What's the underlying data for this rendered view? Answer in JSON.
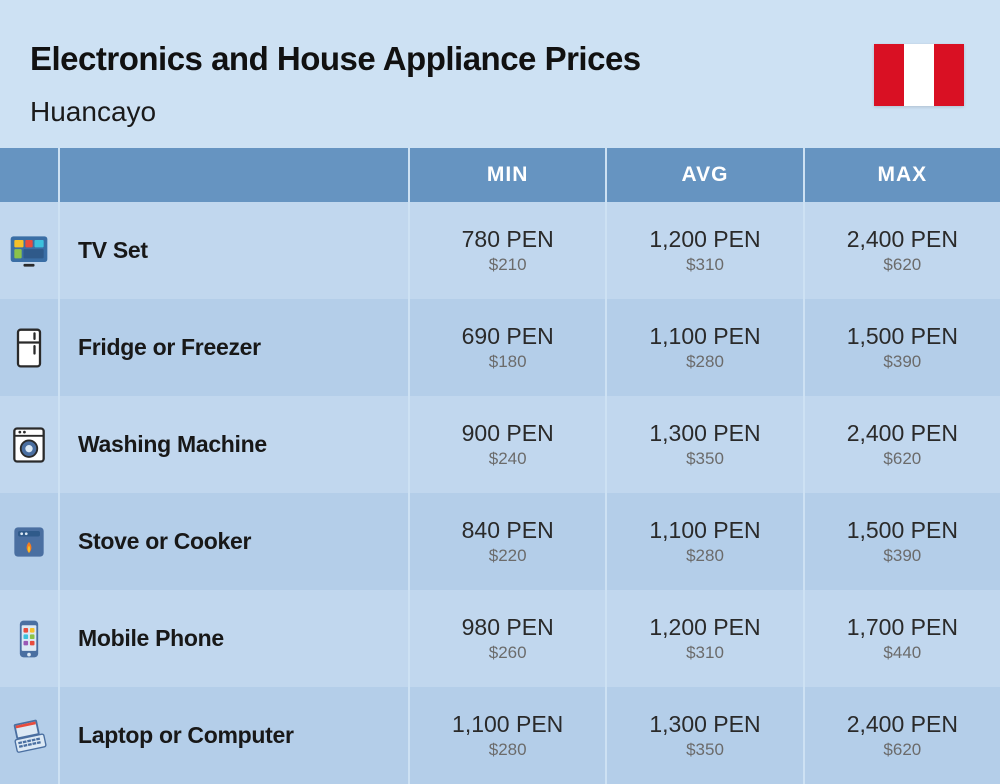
{
  "header": {
    "title": "Electronics and House Appliance Prices",
    "subtitle": "Huancayo",
    "flag_colors": {
      "red": "#d91023",
      "white": "#ffffff"
    }
  },
  "table": {
    "columns": [
      "MIN",
      "AVG",
      "MAX"
    ],
    "header_bg": "#6694c1",
    "header_fg": "#ffffff",
    "row_bg_a": "#c1d7ee",
    "row_bg_b": "#b4cee9",
    "page_bg": "#cde1f3",
    "pen_color": "#2a2a2a",
    "usd_color": "#6b6b6b",
    "name_fontsize": 23,
    "pen_fontsize": 23,
    "usd_fontsize": 17,
    "rows": [
      {
        "icon": "tv",
        "name": "TV Set",
        "min": {
          "pen": "780 PEN",
          "usd": "$210"
        },
        "avg": {
          "pen": "1,200 PEN",
          "usd": "$310"
        },
        "max": {
          "pen": "2,400 PEN",
          "usd": "$620"
        }
      },
      {
        "icon": "fridge",
        "name": "Fridge or Freezer",
        "min": {
          "pen": "690 PEN",
          "usd": "$180"
        },
        "avg": {
          "pen": "1,100 PEN",
          "usd": "$280"
        },
        "max": {
          "pen": "1,500 PEN",
          "usd": "$390"
        }
      },
      {
        "icon": "washer",
        "name": "Washing Machine",
        "min": {
          "pen": "900 PEN",
          "usd": "$240"
        },
        "avg": {
          "pen": "1,300 PEN",
          "usd": "$350"
        },
        "max": {
          "pen": "2,400 PEN",
          "usd": "$620"
        }
      },
      {
        "icon": "stove",
        "name": "Stove or Cooker",
        "min": {
          "pen": "840 PEN",
          "usd": "$220"
        },
        "avg": {
          "pen": "1,100 PEN",
          "usd": "$280"
        },
        "max": {
          "pen": "1,500 PEN",
          "usd": "$390"
        }
      },
      {
        "icon": "phone",
        "name": "Mobile Phone",
        "min": {
          "pen": "980 PEN",
          "usd": "$260"
        },
        "avg": {
          "pen": "1,200 PEN",
          "usd": "$310"
        },
        "max": {
          "pen": "1,700 PEN",
          "usd": "$440"
        }
      },
      {
        "icon": "laptop",
        "name": "Laptop or Computer",
        "min": {
          "pen": "1,100 PEN",
          "usd": "$280"
        },
        "avg": {
          "pen": "1,300 PEN",
          "usd": "$350"
        },
        "max": {
          "pen": "2,400 PEN",
          "usd": "$620"
        }
      }
    ]
  },
  "icon_colors": {
    "tv_body": "#3a6ea5",
    "tv_tiles": [
      "#f6c02a",
      "#e84c3d",
      "#3cc1dd",
      "#8bc34a"
    ],
    "fridge_outline": "#2a2a2a",
    "fridge_fill": "#ffffff",
    "washer_outline": "#2a2a2a",
    "washer_drum": "#4a6fa1",
    "stove_body": "#4a6fa1",
    "stove_flame": "#f47c20",
    "phone_body": "#4a6fa1",
    "phone_screen": "#dce9f5",
    "laptop_body": "#4a6fa1",
    "laptop_keys": "#dce9f5",
    "laptop_accent": "#e84c3d"
  }
}
